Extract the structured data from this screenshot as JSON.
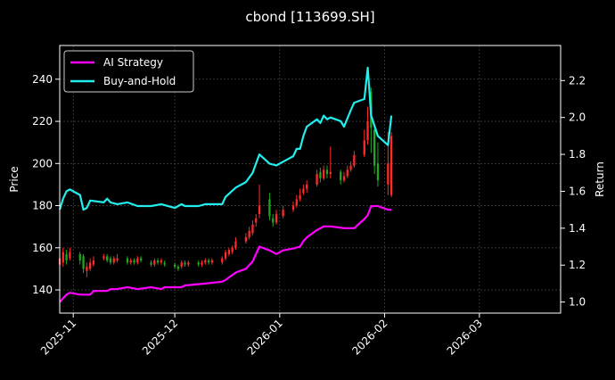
{
  "chart_data": {
    "type": "candlestick-line",
    "title": "cbond [113699.SH]",
    "xlabel": "",
    "ylabel_left": "Price",
    "ylabel_right": "Return",
    "x_range": [
      "2025-10-28",
      "2026-03-25"
    ],
    "x_ticks": [
      "2025-11",
      "2025-12",
      "2026-01",
      "2026-02",
      "2026-03"
    ],
    "y_left_range": [
      129,
      256
    ],
    "y_left_ticks": [
      140,
      160,
      180,
      200,
      220,
      240
    ],
    "y_right_range": [
      0.94,
      2.39
    ],
    "y_right_ticks": [
      1.0,
      1.2,
      1.4,
      1.6,
      1.8,
      2.0,
      2.2
    ],
    "grid": true,
    "legend_position": "top-left",
    "colors": {
      "background": "#000000",
      "ai": "#ff00ff",
      "bh": "#22eeee",
      "up": "#ff2a2a",
      "down": "#1fa81f",
      "grid": "#555555",
      "axis": "#ffffff"
    },
    "series": [
      {
        "name": "AI Strategy",
        "axis": "right",
        "points": [
          [
            "2025-10-28",
            1.0
          ],
          [
            "2025-10-29",
            1.02
          ],
          [
            "2025-10-30",
            1.04
          ],
          [
            "2025-10-31",
            1.05
          ],
          [
            "2025-11-03",
            1.04
          ],
          [
            "2025-11-06",
            1.04
          ],
          [
            "2025-11-07",
            1.06
          ],
          [
            "2025-11-11",
            1.06
          ],
          [
            "2025-11-12",
            1.07
          ],
          [
            "2025-11-14",
            1.07
          ],
          [
            "2025-11-17",
            1.08
          ],
          [
            "2025-11-20",
            1.07
          ],
          [
            "2025-11-24",
            1.08
          ],
          [
            "2025-11-27",
            1.07
          ],
          [
            "2025-11-28",
            1.08
          ],
          [
            "2025-12-03",
            1.08
          ],
          [
            "2025-12-04",
            1.09
          ],
          [
            "2025-12-10",
            1.1
          ],
          [
            "2025-12-15",
            1.11
          ],
          [
            "2025-12-16",
            1.12
          ],
          [
            "2025-12-19",
            1.16
          ],
          [
            "2025-12-22",
            1.18
          ],
          [
            "2025-12-24",
            1.22
          ],
          [
            "2025-12-26",
            1.3
          ],
          [
            "2025-12-29",
            1.28
          ],
          [
            "2025-12-31",
            1.26
          ],
          [
            "2026-01-02",
            1.28
          ],
          [
            "2026-01-05",
            1.29
          ],
          [
            "2026-01-07",
            1.3
          ],
          [
            "2026-01-08",
            1.33
          ],
          [
            "2026-01-09",
            1.35
          ],
          [
            "2026-01-12",
            1.39
          ],
          [
            "2026-01-14",
            1.41
          ],
          [
            "2026-01-16",
            1.41
          ],
          [
            "2026-01-20",
            1.4
          ],
          [
            "2026-01-23",
            1.4
          ],
          [
            "2026-01-26",
            1.45
          ],
          [
            "2026-01-27",
            1.47
          ],
          [
            "2026-01-28",
            1.52
          ],
          [
            "2026-01-30",
            1.52
          ],
          [
            "2026-02-02",
            1.5
          ],
          [
            "2026-02-03",
            1.5
          ]
        ]
      },
      {
        "name": "Buy-and-Hold",
        "axis": "right",
        "points": [
          [
            "2025-10-28",
            1.5
          ],
          [
            "2025-10-29",
            1.56
          ],
          [
            "2025-10-30",
            1.6
          ],
          [
            "2025-10-31",
            1.61
          ],
          [
            "2025-11-03",
            1.58
          ],
          [
            "2025-11-04",
            1.5
          ],
          [
            "2025-11-05",
            1.51
          ],
          [
            "2025-11-06",
            1.55
          ],
          [
            "2025-11-10",
            1.54
          ],
          [
            "2025-11-11",
            1.56
          ],
          [
            "2025-11-12",
            1.54
          ],
          [
            "2025-11-14",
            1.53
          ],
          [
            "2025-11-17",
            1.54
          ],
          [
            "2025-11-20",
            1.52
          ],
          [
            "2025-11-24",
            1.52
          ],
          [
            "2025-11-27",
            1.53
          ],
          [
            "2025-12-01",
            1.51
          ],
          [
            "2025-12-03",
            1.53
          ],
          [
            "2025-12-04",
            1.52
          ],
          [
            "2025-12-08",
            1.52
          ],
          [
            "2025-12-10",
            1.53
          ],
          [
            "2025-12-15",
            1.53
          ],
          [
            "2025-12-16",
            1.57
          ],
          [
            "2025-12-19",
            1.62
          ],
          [
            "2025-12-22",
            1.65
          ],
          [
            "2025-12-24",
            1.7
          ],
          [
            "2025-12-26",
            1.8
          ],
          [
            "2025-12-29",
            1.75
          ],
          [
            "2025-12-31",
            1.74
          ],
          [
            "2026-01-02",
            1.76
          ],
          [
            "2026-01-05",
            1.79
          ],
          [
            "2026-01-06",
            1.83
          ],
          [
            "2026-01-07",
            1.83
          ],
          [
            "2026-01-08",
            1.9
          ],
          [
            "2026-01-09",
            1.95
          ],
          [
            "2026-01-12",
            1.99
          ],
          [
            "2026-01-13",
            1.97
          ],
          [
            "2026-01-14",
            2.01
          ],
          [
            "2026-01-15",
            1.99
          ],
          [
            "2026-01-16",
            2.0
          ],
          [
            "2026-01-19",
            1.98
          ],
          [
            "2026-01-20",
            1.95
          ],
          [
            "2026-01-22",
            2.04
          ],
          [
            "2026-01-23",
            2.08
          ],
          [
            "2026-01-26",
            2.1
          ],
          [
            "2026-01-27",
            2.27
          ],
          [
            "2026-01-28",
            2.01
          ],
          [
            "2026-01-30",
            1.9
          ],
          [
            "2026-02-02",
            1.85
          ],
          [
            "2026-02-03",
            2.01
          ]
        ]
      }
    ],
    "candles": [
      [
        "2025-10-28",
        152,
        155,
        151,
        157
      ],
      [
        "2025-10-29",
        153,
        158,
        151,
        160
      ],
      [
        "2025-10-30",
        157,
        154,
        152,
        159
      ],
      [
        "2025-10-31",
        155,
        158,
        154,
        160
      ],
      [
        "2025-11-03",
        157,
        154,
        152,
        158
      ],
      [
        "2025-11-04",
        156,
        150,
        148,
        157
      ],
      [
        "2025-11-05",
        149,
        151,
        146,
        153
      ],
      [
        "2025-11-06",
        150,
        153,
        149,
        155
      ],
      [
        "2025-11-07",
        152,
        154,
        151,
        156
      ],
      [
        "2025-11-10",
        155,
        156,
        154,
        157
      ],
      [
        "2025-11-11",
        156,
        154,
        153,
        157
      ],
      [
        "2025-11-12",
        155,
        153,
        152,
        156
      ],
      [
        "2025-11-13",
        153,
        155,
        152,
        156
      ],
      [
        "2025-11-14",
        154,
        155,
        153,
        157
      ],
      [
        "2025-11-17",
        155,
        153,
        152,
        156
      ],
      [
        "2025-11-18",
        153,
        154,
        152,
        155
      ],
      [
        "2025-11-19",
        154,
        153,
        152,
        155
      ],
      [
        "2025-11-20",
        153,
        155,
        152,
        156
      ],
      [
        "2025-11-21",
        155,
        154,
        153,
        156
      ],
      [
        "2025-11-24",
        153,
        152,
        151,
        154
      ],
      [
        "2025-11-25",
        152,
        154,
        151,
        155
      ],
      [
        "2025-11-26",
        154,
        153,
        152,
        155
      ],
      [
        "2025-11-27",
        153,
        154,
        152,
        155
      ],
      [
        "2025-11-28",
        153,
        152,
        151,
        154
      ],
      [
        "2025-12-01",
        152,
        151,
        150,
        153
      ],
      [
        "2025-12-02",
        151,
        150,
        149,
        152
      ],
      [
        "2025-12-03",
        151,
        153,
        150,
        154
      ],
      [
        "2025-12-04",
        153,
        152,
        151,
        154
      ],
      [
        "2025-12-05",
        152,
        153,
        151,
        154
      ],
      [
        "2025-12-08",
        153,
        152,
        151,
        154
      ],
      [
        "2025-12-09",
        152,
        153,
        151,
        154
      ],
      [
        "2025-12-10",
        153,
        154,
        152,
        155
      ],
      [
        "2025-12-11",
        154,
        153,
        152,
        155
      ],
      [
        "2025-12-12",
        153,
        154,
        152,
        155
      ],
      [
        "2025-12-15",
        153,
        155,
        152,
        156
      ],
      [
        "2025-12-16",
        155,
        158,
        154,
        159
      ],
      [
        "2025-12-17",
        157,
        159,
        156,
        160
      ],
      [
        "2025-12-18",
        158,
        160,
        157,
        161
      ],
      [
        "2025-12-19",
        160,
        163,
        159,
        165
      ],
      [
        "2025-12-22",
        163,
        165,
        162,
        167
      ],
      [
        "2025-12-23",
        165,
        168,
        164,
        170
      ],
      [
        "2025-12-24",
        167,
        171,
        166,
        173
      ],
      [
        "2025-12-25",
        172,
        174,
        170,
        176
      ],
      [
        "2025-12-26",
        176,
        180,
        174,
        190
      ],
      [
        "2025-12-29",
        183,
        175,
        173,
        186
      ],
      [
        "2025-12-30",
        174,
        172,
        170,
        176
      ],
      [
        "2025-12-31",
        172,
        176,
        171,
        178
      ],
      [
        "2026-01-02",
        175,
        178,
        174,
        180
      ],
      [
        "2026-01-05",
        178,
        180,
        177,
        182
      ],
      [
        "2026-01-06",
        180,
        183,
        179,
        185
      ],
      [
        "2026-01-07",
        183,
        185,
        182,
        188
      ],
      [
        "2026-01-08",
        186,
        188,
        185,
        190
      ],
      [
        "2026-01-09",
        188,
        190,
        186,
        192
      ],
      [
        "2026-01-12",
        190,
        195,
        189,
        197
      ],
      [
        "2026-01-13",
        196,
        193,
        191,
        198
      ],
      [
        "2026-01-14",
        193,
        197,
        192,
        199
      ],
      [
        "2026-01-15",
        197,
        195,
        193,
        199
      ],
      [
        "2026-01-16",
        195,
        196,
        193,
        208
      ],
      [
        "2026-01-19",
        196,
        192,
        190,
        197
      ],
      [
        "2026-01-20",
        192,
        194,
        191,
        196
      ],
      [
        "2026-01-21",
        194,
        197,
        193,
        199
      ],
      [
        "2026-01-22",
        197,
        199,
        196,
        201
      ],
      [
        "2026-01-23",
        199,
        204,
        198,
        206
      ],
      [
        "2026-01-26",
        204,
        211,
        203,
        216
      ],
      [
        "2026-01-27",
        211,
        220,
        209,
        227
      ],
      [
        "2026-01-28",
        234,
        217,
        205,
        236
      ],
      [
        "2026-01-29",
        216,
        199,
        195,
        218
      ],
      [
        "2026-01-30",
        200,
        192,
        189,
        210
      ],
      [
        "2026-02-02",
        190,
        200,
        185,
        215
      ],
      [
        "2026-02-03",
        185,
        213,
        184,
        215
      ]
    ]
  }
}
